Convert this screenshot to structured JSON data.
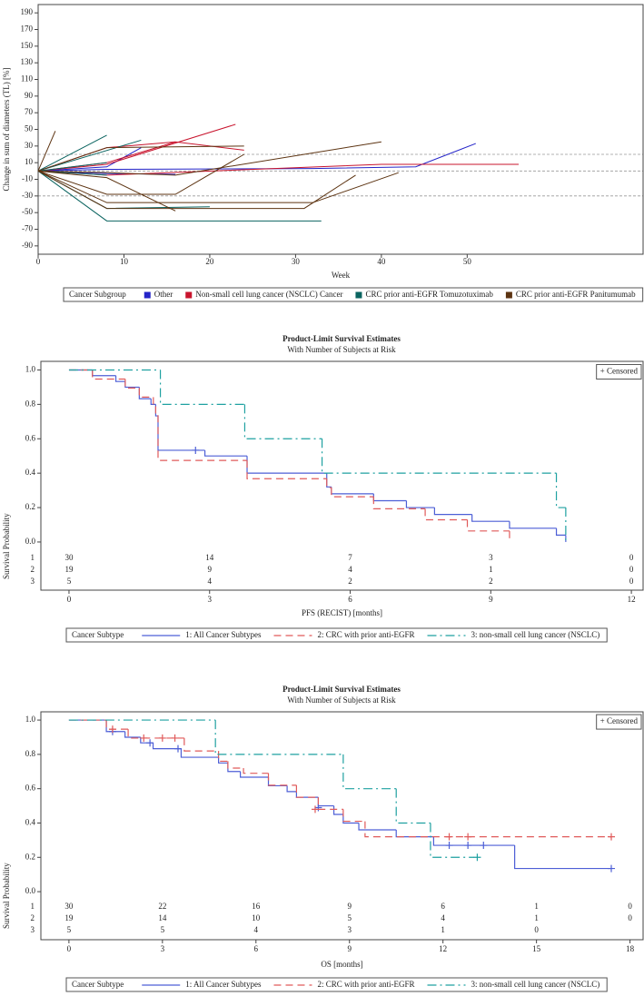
{
  "chart_data": [
    {
      "type": "spider",
      "x_label": "Week",
      "y_label": "Change in sum of diameters (TL) [%]",
      "xlim": [
        0,
        70.5
      ],
      "ylim": [
        -100,
        200
      ],
      "xticks": [
        0,
        10,
        20,
        30,
        40,
        50
      ],
      "yticks": [
        -90,
        -70,
        -50,
        -30,
        -10,
        10,
        30,
        50,
        70,
        90,
        110,
        130,
        150,
        170,
        190
      ],
      "reference_lines": [
        20,
        0,
        -30
      ],
      "legend_title": "Cancer Subgroup",
      "series": [
        {
          "name": "Other",
          "color": "#2424c8",
          "patients": [
            {
              "x": [
                0,
                8,
                32,
                44,
                51
              ],
              "values": [
                0,
                2,
                3,
                5,
                33
              ]
            },
            {
              "x": [
                0,
                8,
                12
              ],
              "values": [
                0,
                5,
                28
              ]
            },
            {
              "x": [
                0,
                8,
                16
              ],
              "values": [
                0,
                -3,
                -4
              ]
            }
          ]
        },
        {
          "name": "Non-small cell lung cancer (NSCLC) Cancer",
          "color": "#c8142d",
          "patients": [
            {
              "x": [
                0,
                8,
                23
              ],
              "values": [
                0,
                8,
                56
              ]
            },
            {
              "x": [
                0,
                8,
                16,
                24
              ],
              "values": [
                0,
                10,
                35,
                25
              ]
            },
            {
              "x": [
                0,
                8,
                40,
                56
              ],
              "values": [
                0,
                -5,
                8,
                8
              ]
            },
            {
              "x": [
                0,
                8,
                16
              ],
              "values": [
                0,
                28,
                35
              ]
            }
          ]
        },
        {
          "name": "CRC prior anti-EGFR Tomuzotuximab",
          "color": "#0b6460",
          "patients": [
            {
              "x": [
                0,
                8
              ],
              "values": [
                0,
                43
              ]
            },
            {
              "x": [
                0,
                12
              ],
              "values": [
                0,
                37
              ]
            },
            {
              "x": [
                0,
                8
              ],
              "values": [
                0,
                10
              ]
            },
            {
              "x": [
                0,
                8,
                33
              ],
              "values": [
                0,
                -60,
                -60
              ]
            },
            {
              "x": [
                0,
                8,
                20
              ],
              "values": [
                0,
                -45,
                -43
              ]
            },
            {
              "x": [
                0,
                8
              ],
              "values": [
                0,
                -5
              ]
            }
          ]
        },
        {
          "name": "CRC prior anti-EGFR Panitumumab",
          "color": "#5c3311",
          "patients": [
            {
              "x": [
                0,
                2
              ],
              "values": [
                0,
                48
              ]
            },
            {
              "x": [
                0,
                8,
                24
              ],
              "values": [
                0,
                28,
                30
              ]
            },
            {
              "x": [
                0,
                8,
                16,
                24
              ],
              "values": [
                0,
                -28,
                -28,
                20
              ]
            },
            {
              "x": [
                0,
                8,
                32,
                42
              ],
              "values": [
                0,
                -38,
                -38,
                -2
              ]
            },
            {
              "x": [
                0,
                8,
                31,
                37
              ],
              "values": [
                0,
                -45,
                -45,
                -5
              ]
            },
            {
              "x": [
                0,
                8,
                16,
                40
              ],
              "values": [
                0,
                -2,
                -5,
                35
              ]
            },
            {
              "x": [
                0,
                8,
                16
              ],
              "values": [
                0,
                -8,
                -48
              ]
            }
          ]
        }
      ]
    },
    {
      "type": "km",
      "title": "Product-Limit Survival Estimates",
      "subtitle": "With Number of Subjects at Risk",
      "x_label": "PFS (RECIST) [months]",
      "y_label": "Survival Probability",
      "xlim": [
        -0.6,
        12.25
      ],
      "ylim": [
        -0.28,
        1.05
      ],
      "xticks": [
        0,
        3,
        6,
        9,
        12
      ],
      "yticks": [
        {
          "value": 0,
          "label": "0.0"
        },
        0.2,
        0.4,
        0.6,
        0.8,
        {
          "value": 1,
          "label": "1.0"
        }
      ],
      "censored_label": "+ Censored",
      "legend_title": "Cancer Subtype",
      "series": [
        {
          "name": "1: All Cancer Subtypes",
          "color": "#4d5fd6",
          "dash": "none",
          "x": [
            0,
            0.5,
            1.0,
            1.2,
            1.5,
            1.75,
            1.85,
            1.9,
            2.9,
            3.8,
            5.5,
            5.6,
            6.5,
            7.2,
            7.8,
            8.6,
            9.4,
            10.4,
            10.6
          ],
          "values": [
            1,
            0.967,
            0.933,
            0.9,
            0.833,
            0.8,
            0.733,
            0.533,
            0.5,
            0.4,
            0.32,
            0.28,
            0.24,
            0.2,
            0.16,
            0.12,
            0.08,
            0.04,
            0
          ],
          "censored_x": [
            2.7
          ],
          "censored_y": [
            0.533
          ]
        },
        {
          "name": "2: CRC with prior anti-EGFR",
          "color": "#e05a5a",
          "dash": "8 5",
          "x": [
            0,
            0.5,
            1.2,
            1.5,
            1.8,
            1.85,
            1.9,
            3.8,
            5.5,
            5.6,
            6.5,
            7.6,
            8.5,
            9.4
          ],
          "values": [
            1,
            0.947,
            0.895,
            0.842,
            0.789,
            0.737,
            0.474,
            0.368,
            0.316,
            0.263,
            0.193,
            0.129,
            0.064,
            0
          ],
          "censored_x": [],
          "censored_y": []
        },
        {
          "name": "3: non-small cell lung cancer (NSCLC)",
          "color": "#1fa1a1",
          "dash": "10 4 2 4",
          "x": [
            0,
            1.95,
            3.75,
            5.4,
            10.4,
            10.6
          ],
          "values": [
            1,
            0.8,
            0.6,
            0.4,
            0.2,
            0
          ],
          "censored_x": [],
          "censored_y": []
        }
      ],
      "at_risk": [
        {
          "label": "1",
          "counts": [
            30,
            14,
            7,
            3,
            0
          ]
        },
        {
          "label": "2",
          "counts": [
            19,
            9,
            4,
            1,
            0
          ]
        },
        {
          "label": "3",
          "counts": [
            5,
            4,
            2,
            2,
            0
          ]
        }
      ]
    },
    {
      "type": "km",
      "title": "Product-Limit Survival Estimates",
      "subtitle": "With Number of Subjects at Risk",
      "x_label": "OS [months]",
      "y_label": "Survival Probability",
      "xlim": [
        -0.9,
        18.42
      ],
      "ylim": [
        -0.28,
        1.048
      ],
      "xticks": [
        0,
        3,
        6,
        9,
        12,
        15,
        18
      ],
      "yticks": [
        {
          "value": 0,
          "label": "0.0"
        },
        0.2,
        0.4,
        0.6,
        0.8,
        {
          "value": 1,
          "label": "1.0"
        }
      ],
      "censored_label": "+ Censored",
      "legend_title": "Cancer Subtype",
      "series": [
        {
          "name": "1: All Cancer Subtypes",
          "color": "#4d5fd6",
          "dash": "none",
          "x": [
            0,
            1.2,
            1.8,
            2.3,
            2.7,
            3.6,
            4.8,
            5.1,
            5.5,
            6.4,
            7.0,
            7.3,
            8.0,
            8.5,
            8.8,
            9.3,
            10.5,
            11.7,
            14.3,
            17.4
          ],
          "values": [
            1,
            0.933,
            0.9,
            0.867,
            0.833,
            0.783,
            0.75,
            0.7,
            0.667,
            0.617,
            0.583,
            0.55,
            0.5,
            0.45,
            0.4,
            0.36,
            0.32,
            0.27,
            0.135,
            0.135
          ],
          "censored_x": [
            1.4,
            2.6,
            3.5,
            8.0,
            12.2,
            12.8,
            13.3,
            17.4
          ],
          "censored_y": [
            0.933,
            0.867,
            0.833,
            0.49,
            0.27,
            0.27,
            0.27,
            0.135
          ]
        },
        {
          "name": "2: CRC with prior anti-EGFR",
          "color": "#e05a5a",
          "dash": "8 5",
          "x": [
            0,
            1.2,
            1.9,
            3.7,
            4.8,
            5.1,
            5.6,
            6.4,
            7.3,
            8.0,
            8.8,
            9.5,
            17.4
          ],
          "values": [
            1,
            0.947,
            0.895,
            0.82,
            0.76,
            0.72,
            0.69,
            0.62,
            0.55,
            0.48,
            0.41,
            0.32,
            0.32
          ],
          "censored_x": [
            1.4,
            2.4,
            3.0,
            3.4,
            7.9,
            12.2,
            12.8,
            17.4
          ],
          "censored_y": [
            0.947,
            0.895,
            0.895,
            0.895,
            0.48,
            0.32,
            0.32,
            0.32
          ]
        },
        {
          "name": "3: non-small cell lung cancer (NSCLC)",
          "color": "#1fa1a1",
          "dash": "10 4 2 4",
          "x": [
            0,
            4.7,
            8.8,
            10.5,
            11.6,
            13.0
          ],
          "values": [
            1,
            0.8,
            0.6,
            0.4,
            0.2,
            0.2
          ],
          "censored_x": [
            13.1
          ],
          "censored_y": [
            0.2
          ]
        }
      ],
      "at_risk": [
        {
          "label": "1",
          "counts": [
            30,
            22,
            16,
            9,
            6,
            1,
            0
          ]
        },
        {
          "label": "2",
          "counts": [
            19,
            14,
            10,
            5,
            4,
            1,
            0
          ]
        },
        {
          "label": "3",
          "counts": [
            5,
            5,
            4,
            3,
            1,
            0,
            null
          ]
        }
      ]
    }
  ]
}
